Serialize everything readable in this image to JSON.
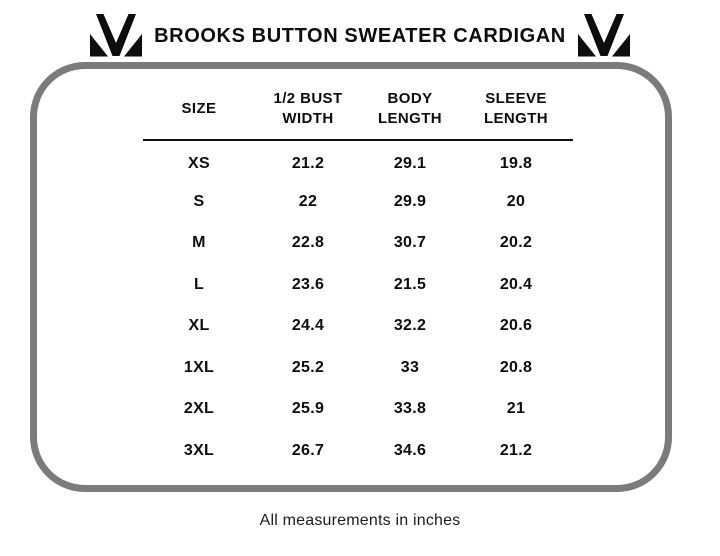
{
  "chart_data": {
    "type": "table",
    "title": "BROOKS BUTTON SWEATER CARDIGAN",
    "columns": [
      "SIZE",
      "1/2 BUST WIDTH",
      "BODY LENGTH",
      "SLEEVE LENGTH"
    ],
    "column_labels": [
      {
        "line1": "SIZE",
        "line2": ""
      },
      {
        "line1": "1/2 BUST",
        "line2": "WIDTH"
      },
      {
        "line1": "BODY",
        "line2": "LENGTH"
      },
      {
        "line1": "SLEEVE",
        "line2": "LENGTH"
      }
    ],
    "rows": [
      [
        "XS",
        "21.2",
        "29.1",
        "19.8"
      ],
      [
        "S",
        "22",
        "29.9",
        "20"
      ],
      [
        "M",
        "22.8",
        "30.7",
        "20.2"
      ],
      [
        "L",
        "23.6",
        "21.5",
        "20.4"
      ],
      [
        "XL",
        "24.4",
        "32.2",
        "20.6"
      ],
      [
        "1XL",
        "25.2",
        "33",
        "20.8"
      ],
      [
        "2XL",
        "25.9",
        "33.8",
        "21"
      ],
      [
        "3XL",
        "26.7",
        "34.6",
        "21.2"
      ]
    ],
    "units_note": "All measurements in inches",
    "legend": "none",
    "grid": "header-underline-only"
  },
  "icons": {
    "brand_logo": "brand-m-logo-icon"
  },
  "colors": {
    "background": "#ffffff",
    "frame_border": "#7b7b7b",
    "text": "#0d0d0d",
    "header_underline": "#111111"
  }
}
